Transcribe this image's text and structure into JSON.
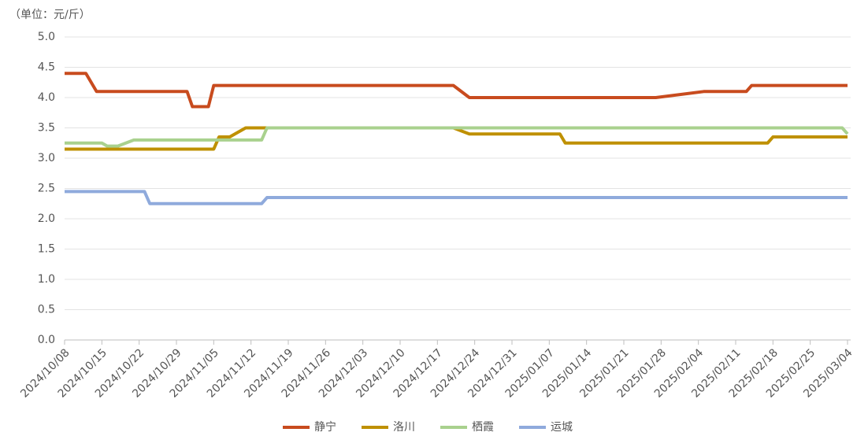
{
  "chart_data": {
    "type": "line",
    "unit_label": "（单位：元/斤）",
    "x": [
      "2024/10/08",
      "2024/10/12",
      "2024/10/14",
      "2024/10/15",
      "2024/10/16",
      "2024/10/18",
      "2024/10/21",
      "2024/10/23",
      "2024/10/24",
      "2024/10/31",
      "2024/11/01",
      "2024/11/04",
      "2024/11/05",
      "2024/11/06",
      "2024/11/08",
      "2024/11/11",
      "2024/11/14",
      "2024/11/15",
      "2024/12/20",
      "2024/12/23",
      "2025/01/09",
      "2025/01/10",
      "2025/01/27",
      "2025/02/05",
      "2025/02/13",
      "2025/02/14",
      "2025/02/17",
      "2025/02/18",
      "2025/03/03",
      "2025/03/04"
    ],
    "series": [
      {
        "name": "静宁",
        "color": "#c84b1e",
        "values": [
          4.4,
          4.4,
          4.1,
          4.1,
          4.1,
          4.1,
          4.1,
          4.1,
          4.1,
          4.1,
          3.85,
          3.85,
          4.2,
          4.2,
          4.2,
          4.2,
          4.2,
          4.2,
          4.2,
          4.0,
          4.0,
          4.0,
          4.0,
          4.1,
          4.1,
          4.2,
          4.2,
          4.2,
          4.2,
          4.2
        ]
      },
      {
        "name": "洛川",
        "color": "#bf9000",
        "values": [
          3.15,
          3.15,
          3.15,
          3.15,
          3.15,
          3.15,
          3.15,
          3.15,
          3.15,
          3.15,
          3.15,
          3.15,
          3.15,
          3.35,
          3.35,
          3.5,
          3.5,
          3.5,
          3.5,
          3.4,
          3.4,
          3.25,
          3.25,
          3.25,
          3.25,
          3.25,
          3.25,
          3.35,
          3.35,
          3.35
        ]
      },
      {
        "name": "栖霞",
        "color": "#a9d18e",
        "values": [
          3.25,
          3.25,
          3.25,
          3.25,
          3.2,
          3.2,
          3.3,
          3.3,
          3.3,
          3.3,
          3.3,
          3.3,
          3.3,
          3.3,
          3.3,
          3.3,
          3.3,
          3.5,
          3.5,
          3.5,
          3.5,
          3.5,
          3.5,
          3.5,
          3.5,
          3.5,
          3.5,
          3.5,
          3.5,
          3.4
        ]
      },
      {
        "name": "运城",
        "color": "#8faadc",
        "values": [
          2.45,
          2.45,
          2.45,
          2.45,
          2.45,
          2.45,
          2.45,
          2.45,
          2.25,
          2.25,
          2.25,
          2.25,
          2.25,
          2.25,
          2.25,
          2.25,
          2.25,
          2.35,
          2.35,
          2.35,
          2.35,
          2.35,
          2.35,
          2.35,
          2.35,
          2.35,
          2.35,
          2.35,
          2.35,
          2.35
        ]
      }
    ],
    "xlim": [
      "2024/10/08",
      "2025/03/04"
    ],
    "xticks": [
      "2024/10/08",
      "2024/10/15",
      "2024/10/22",
      "2024/10/29",
      "2024/11/05",
      "2024/11/12",
      "2024/11/19",
      "2024/11/26",
      "2024/12/03",
      "2024/12/10",
      "2024/12/17",
      "2024/12/24",
      "2024/12/31",
      "2025/01/07",
      "2025/01/14",
      "2025/01/21",
      "2025/01/28",
      "2025/02/04",
      "2025/02/11",
      "2025/02/18",
      "2025/02/25",
      "2025/03/04"
    ],
    "ylim": [
      0,
      5
    ],
    "yticks": [
      {
        "value": 0,
        "label": "0.0"
      },
      {
        "value": 0.5,
        "label": "0.5"
      },
      {
        "value": 1,
        "label": "1.0"
      },
      {
        "value": 1.5,
        "label": "1.5"
      },
      {
        "value": 2,
        "label": "2.0"
      },
      {
        "value": 2.5,
        "label": "2.5"
      },
      {
        "value": 3,
        "label": "3.0"
      },
      {
        "value": 3.5,
        "label": "3.5"
      },
      {
        "value": 4,
        "label": "4.0"
      },
      {
        "value": 4.5,
        "label": "4.5"
      },
      {
        "value": 5,
        "label": "5.0"
      }
    ],
    "grid": true
  }
}
